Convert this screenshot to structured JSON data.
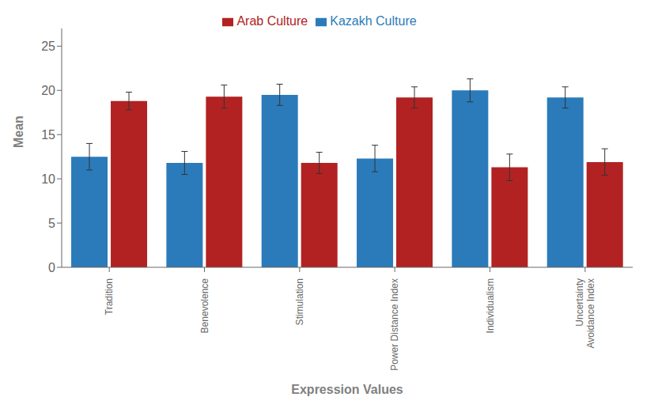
{
  "chart_data": {
    "type": "bar",
    "categories": [
      "Tradition",
      "Benevolence",
      "Stimulation",
      "Power Distance Index",
      "Individualism",
      "Uncertainty\nAvoidance Index"
    ],
    "series": [
      {
        "name": "Kazakh Culture",
        "color": "#2b7bba",
        "values": [
          12.5,
          11.8,
          19.5,
          12.3,
          20.0,
          19.2
        ],
        "errors": [
          1.5,
          1.3,
          1.2,
          1.5,
          1.3,
          1.2
        ]
      },
      {
        "name": "Arab Culture",
        "color": "#b22222",
        "values": [
          18.8,
          19.3,
          11.8,
          19.2,
          11.3,
          11.9
        ],
        "errors": [
          1.0,
          1.3,
          1.2,
          1.2,
          1.5,
          1.5
        ]
      }
    ],
    "xlabel": "Expression Values",
    "ylabel": "Mean",
    "ylim": [
      0,
      27
    ],
    "yticks": [
      0,
      5,
      10,
      15,
      20,
      25
    ],
    "grid": false,
    "legend": "top"
  }
}
